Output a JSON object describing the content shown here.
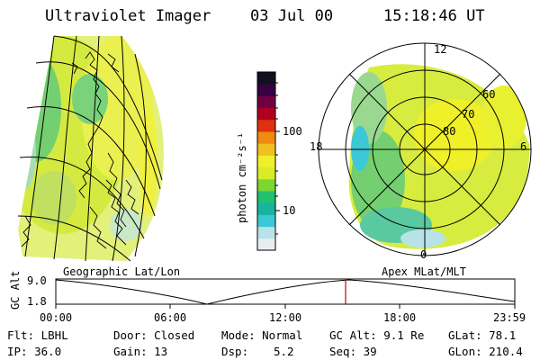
{
  "header": {
    "instrument": "Ultraviolet Imager",
    "date": "03 Jul 00",
    "time": "15:18:46 UT"
  },
  "colorbar": {
    "unit_label": "photon cm⁻²s⁻¹",
    "ticks": [
      "100",
      "10"
    ],
    "colors": [
      "#e8eef0",
      "#b7e3e8",
      "#3cc8d6",
      "#18b4a0",
      "#22c070",
      "#7ad830",
      "#d8ec28",
      "#f0f028",
      "#f0c020",
      "#f08a10",
      "#e03010",
      "#b00020",
      "#700040",
      "#380040",
      "#101020"
    ]
  },
  "left_panel": {
    "label": "Geographic Lat/Lon"
  },
  "right_panel": {
    "label": "Apex MLat/MLT",
    "lat_labels": [
      "80",
      "70",
      "60"
    ],
    "mlt_labels": [
      "12",
      "18",
      "6",
      "0"
    ]
  },
  "timeline": {
    "axis_label": "GC Alt",
    "y_ticks": [
      "9.0",
      "1.8"
    ],
    "x_ticks": [
      "00:00",
      "06:00",
      "12:00",
      "18:00",
      "23:59"
    ],
    "marker_color": "#cc0000"
  },
  "info": {
    "flt": "Flt: LBHL",
    "door": "Door: Closed",
    "mode": "Mode: Normal",
    "gcalt": "GC Alt: 9.1 Re",
    "glat": "GLat: 78.1",
    "ip": "IP: 36.0",
    "gain": "Gain: 13",
    "dsp_label": "Dsp:",
    "dsp_value": "5.2",
    "seq": "Seq: 39",
    "glon": "GLon: 210.4"
  }
}
